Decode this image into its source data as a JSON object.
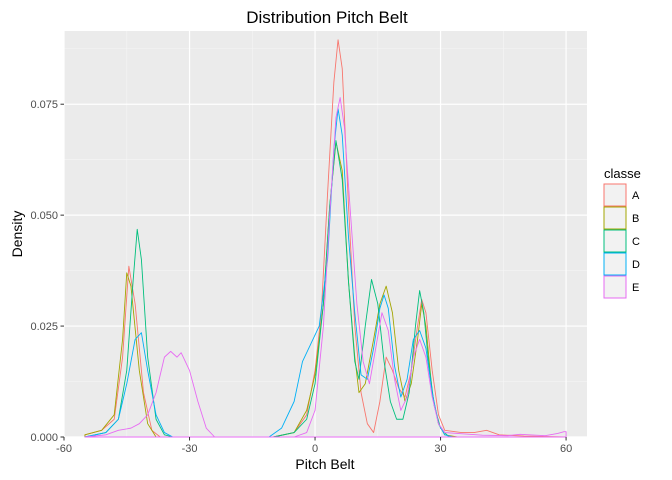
{
  "chart_data": {
    "type": "density",
    "title": "Distribution Pitch Belt",
    "xlabel": "Pitch Belt",
    "ylabel": "Density",
    "xlim": [
      -60,
      65
    ],
    "ylim": [
      0,
      0.0915
    ],
    "x_ticks": [
      -60,
      -30,
      0,
      30,
      60
    ],
    "x_tick_labels": [
      "-60",
      "-30",
      "0",
      "30",
      "60"
    ],
    "y_ticks": [
      0,
      0.025,
      0.05,
      0.075
    ],
    "y_tick_labels": [
      "0.000",
      "0.025",
      "0.050",
      "0.075"
    ],
    "grid": true,
    "legend": {
      "title": "classe",
      "position": "right"
    },
    "series": [
      {
        "name": "A",
        "color": "#F8766D",
        "points": [
          [
            -55,
            0.0005
          ],
          [
            -51,
            0.0015
          ],
          [
            -48,
            0.004
          ],
          [
            -46,
            0.018
          ],
          [
            -44.5,
            0.0385
          ],
          [
            -43,
            0.03
          ],
          [
            -41,
            0.01
          ],
          [
            -39,
            0.0015
          ],
          [
            -37,
            0
          ],
          [
            -10,
            0
          ],
          [
            -5,
            0.001
          ],
          [
            -2,
            0.005
          ],
          [
            0,
            0.015
          ],
          [
            1.5,
            0.028
          ],
          [
            3,
            0.055
          ],
          [
            4.5,
            0.08
          ],
          [
            5.5,
            0.0895
          ],
          [
            6.5,
            0.083
          ],
          [
            8,
            0.052
          ],
          [
            9.5,
            0.025
          ],
          [
            11,
            0.01
          ],
          [
            12.5,
            0.003
          ],
          [
            14,
            0.001
          ],
          [
            15.5,
            0.008
          ],
          [
            17,
            0.018
          ],
          [
            18.5,
            0.015
          ],
          [
            20,
            0.011
          ],
          [
            21.5,
            0.009
          ],
          [
            23,
            0.015
          ],
          [
            24.5,
            0.025
          ],
          [
            25.5,
            0.031
          ],
          [
            26.5,
            0.028
          ],
          [
            28,
            0.015
          ],
          [
            29.5,
            0.005
          ],
          [
            31,
            0.0015
          ],
          [
            35,
            0.001
          ],
          [
            38,
            0.001
          ],
          [
            41,
            0.0015
          ],
          [
            44,
            0.0005
          ],
          [
            50,
            0.0002
          ],
          [
            60,
            0
          ]
        ]
      },
      {
        "name": "B",
        "color": "#A3A500",
        "points": [
          [
            -55,
            0.0005
          ],
          [
            -51,
            0.0015
          ],
          [
            -48,
            0.005
          ],
          [
            -46,
            0.022
          ],
          [
            -45,
            0.037
          ],
          [
            -44,
            0.034
          ],
          [
            -42,
            0.015
          ],
          [
            -40,
            0.003
          ],
          [
            -38,
            0
          ],
          [
            -10,
            0
          ],
          [
            -5,
            0.001
          ],
          [
            -2,
            0.006
          ],
          [
            0,
            0.014
          ],
          [
            2,
            0.03
          ],
          [
            3.5,
            0.052
          ],
          [
            5,
            0.0665
          ],
          [
            6.5,
            0.06
          ],
          [
            8,
            0.035
          ],
          [
            9.5,
            0.018
          ],
          [
            10.5,
            0.01
          ],
          [
            12,
            0.012
          ],
          [
            14,
            0.022
          ],
          [
            15.5,
            0.03
          ],
          [
            17,
            0.034
          ],
          [
            18.5,
            0.028
          ],
          [
            20,
            0.015
          ],
          [
            21.5,
            0.008
          ],
          [
            23,
            0.012
          ],
          [
            24.5,
            0.022
          ],
          [
            25.5,
            0.03
          ],
          [
            26.5,
            0.025
          ],
          [
            28,
            0.01
          ],
          [
            29.5,
            0.003
          ],
          [
            31,
            0.0005
          ],
          [
            34,
            0
          ]
        ]
      },
      {
        "name": "C",
        "color": "#00BF7D",
        "points": [
          [
            -55,
            0
          ],
          [
            -50,
            0.001
          ],
          [
            -47,
            0.004
          ],
          [
            -45,
            0.015
          ],
          [
            -43.5,
            0.035
          ],
          [
            -42.5,
            0.0468
          ],
          [
            -41.5,
            0.04
          ],
          [
            -40,
            0.018
          ],
          [
            -38,
            0.004
          ],
          [
            -36,
            0.0005
          ],
          [
            -34,
            0
          ],
          [
            -10,
            0
          ],
          [
            -5,
            0.001
          ],
          [
            -2,
            0.004
          ],
          [
            0,
            0.012
          ],
          [
            2,
            0.03
          ],
          [
            3.5,
            0.052
          ],
          [
            5,
            0.0668
          ],
          [
            6.5,
            0.058
          ],
          [
            8,
            0.035
          ],
          [
            9.5,
            0.017
          ],
          [
            10.5,
            0.013
          ],
          [
            12,
            0.025
          ],
          [
            13.5,
            0.0355
          ],
          [
            15,
            0.03
          ],
          [
            16.5,
            0.017
          ],
          [
            18,
            0.008
          ],
          [
            19.5,
            0.004
          ],
          [
            21,
            0.004
          ],
          [
            22.5,
            0.01
          ],
          [
            24,
            0.025
          ],
          [
            25,
            0.033
          ],
          [
            26,
            0.028
          ],
          [
            27,
            0.018
          ],
          [
            28.5,
            0.007
          ],
          [
            30,
            0.002
          ],
          [
            32,
            0
          ],
          [
            60,
            0
          ]
        ]
      },
      {
        "name": "D",
        "color": "#00B0F6",
        "points": [
          [
            -55,
            0
          ],
          [
            -50,
            0.001
          ],
          [
            -47,
            0.004
          ],
          [
            -45,
            0.012
          ],
          [
            -43,
            0.022
          ],
          [
            -41.5,
            0.0235
          ],
          [
            -40,
            0.015
          ],
          [
            -38,
            0.005
          ],
          [
            -36,
            0.001
          ],
          [
            -34,
            0
          ],
          [
            -11,
            0
          ],
          [
            -8,
            0.002
          ],
          [
            -5,
            0.008
          ],
          [
            -3,
            0.017
          ],
          [
            -1,
            0.021
          ],
          [
            1,
            0.025
          ],
          [
            3,
            0.04
          ],
          [
            4.5,
            0.065
          ],
          [
            5.5,
            0.074
          ],
          [
            6.5,
            0.068
          ],
          [
            8,
            0.045
          ],
          [
            9.5,
            0.028
          ],
          [
            11,
            0.014
          ],
          [
            12.5,
            0.013
          ],
          [
            14,
            0.02
          ],
          [
            15.5,
            0.029
          ],
          [
            16.5,
            0.032
          ],
          [
            17.5,
            0.029
          ],
          [
            19,
            0.016
          ],
          [
            20.5,
            0.009
          ],
          [
            22,
            0.013
          ],
          [
            23.5,
            0.022
          ],
          [
            25,
            0.024
          ],
          [
            26.5,
            0.02
          ],
          [
            28,
            0.01
          ],
          [
            29.5,
            0.003
          ],
          [
            31,
            0.0005
          ],
          [
            33,
            0
          ]
        ]
      },
      {
        "name": "E",
        "color": "#E76BF3",
        "points": [
          [
            -55,
            0
          ],
          [
            -50,
            0.0005
          ],
          [
            -47,
            0.0015
          ],
          [
            -44,
            0.002
          ],
          [
            -42,
            0.003
          ],
          [
            -40,
            0.005
          ],
          [
            -38,
            0.01
          ],
          [
            -36,
            0.018
          ],
          [
            -34.5,
            0.0193
          ],
          [
            -33,
            0.018
          ],
          [
            -32,
            0.019
          ],
          [
            -30,
            0.015
          ],
          [
            -28,
            0.008
          ],
          [
            -26,
            0.002
          ],
          [
            -24,
            0
          ],
          [
            -5,
            0
          ],
          [
            -2,
            0.001
          ],
          [
            0,
            0.006
          ],
          [
            2,
            0.025
          ],
          [
            3.5,
            0.05
          ],
          [
            5,
            0.072
          ],
          [
            6,
            0.0765
          ],
          [
            7,
            0.07
          ],
          [
            8.5,
            0.05
          ],
          [
            10,
            0.03
          ],
          [
            11.5,
            0.017
          ],
          [
            13,
            0.012
          ],
          [
            14.5,
            0.02
          ],
          [
            16,
            0.028
          ],
          [
            17.5,
            0.024
          ],
          [
            19,
            0.013
          ],
          [
            20.5,
            0.006
          ],
          [
            22,
            0.009
          ],
          [
            23.5,
            0.018
          ],
          [
            25,
            0.022
          ],
          [
            26.5,
            0.018
          ],
          [
            28,
            0.009
          ],
          [
            29.5,
            0.003
          ],
          [
            31,
            0.001
          ],
          [
            40,
            0.0004
          ],
          [
            46,
            0.0003
          ],
          [
            49,
            0.0006
          ],
          [
            55,
            0.0003
          ],
          [
            58,
            0.0008
          ],
          [
            59.5,
            0.0012
          ],
          [
            60,
            0.0012
          ]
        ]
      }
    ]
  }
}
